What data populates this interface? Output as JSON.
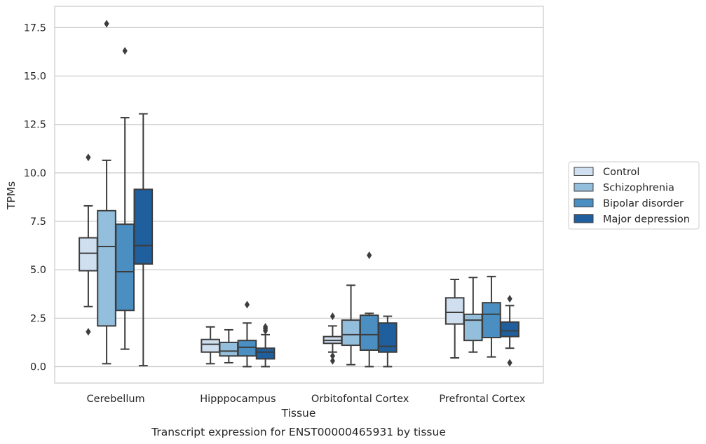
{
  "caption": "Transcript expression for ENST00000465931 by tissue",
  "colors": {
    "Control": "#cfdff0",
    "Schizophrenia": "#93bedc",
    "Bipolar disorder": "#4b8fc2",
    "Major depression": "#1f5f9d",
    "grid": "#cccccc",
    "line": "#3d3d3d"
  },
  "chart_data": {
    "type": "box",
    "title": "",
    "xlabel": "Tissue",
    "ylabel": "TPMs",
    "ylim": [
      -0.85,
      18.6
    ],
    "yticks": [
      "0.0",
      "2.5",
      "5.0",
      "7.5",
      "10.0",
      "12.5",
      "15.0",
      "17.5"
    ],
    "ytick_values": [
      0,
      2.5,
      5,
      7.5,
      10,
      12.5,
      15,
      17.5
    ],
    "grid": "horizontal",
    "legend_position": "right",
    "categories": [
      "Cerebellum",
      "Hipppocampus",
      "Orbitofontal Cortex",
      "Prefrontal Cortex"
    ],
    "series": [
      {
        "name": "Control",
        "boxes": [
          {
            "q1": 4.95,
            "median": 5.85,
            "q3": 6.65,
            "whislo": 3.1,
            "whishi": 8.3,
            "fliers": [
              10.8,
              1.8
            ]
          },
          {
            "q1": 0.75,
            "median": 1.15,
            "q3": 1.4,
            "whislo": 0.15,
            "whishi": 2.05,
            "fliers": []
          },
          {
            "q1": 1.2,
            "median": 1.35,
            "q3": 1.55,
            "whislo": 0.75,
            "whishi": 2.1,
            "fliers": [
              2.6,
              0.55,
              0.3
            ]
          },
          {
            "q1": 2.2,
            "median": 2.8,
            "q3": 3.55,
            "whislo": 0.45,
            "whishi": 4.5,
            "fliers": []
          }
        ]
      },
      {
        "name": "Schizophrenia",
        "boxes": [
          {
            "q1": 2.1,
            "median": 6.2,
            "q3": 8.05,
            "whislo": 0.15,
            "whishi": 10.65,
            "fliers": [
              17.7
            ]
          },
          {
            "q1": 0.55,
            "median": 0.8,
            "q3": 1.25,
            "whislo": 0.2,
            "whishi": 1.9,
            "fliers": []
          },
          {
            "q1": 1.1,
            "median": 1.65,
            "q3": 2.4,
            "whislo": 0.1,
            "whishi": 4.2,
            "fliers": []
          },
          {
            "q1": 1.35,
            "median": 2.4,
            "q3": 2.7,
            "whislo": 0.75,
            "whishi": 4.6,
            "fliers": []
          }
        ]
      },
      {
        "name": "Bipolar disorder",
        "boxes": [
          {
            "q1": 2.9,
            "median": 4.9,
            "q3": 7.35,
            "whislo": 0.9,
            "whishi": 12.85,
            "fliers": [
              16.3
            ]
          },
          {
            "q1": 0.55,
            "median": 1.0,
            "q3": 1.35,
            "whislo": 0.0,
            "whishi": 2.25,
            "fliers": [
              3.2
            ]
          },
          {
            "q1": 0.85,
            "median": 1.65,
            "q3": 2.65,
            "whislo": 0.0,
            "whishi": 2.75,
            "fliers": [
              5.75
            ]
          },
          {
            "q1": 1.5,
            "median": 2.7,
            "q3": 3.3,
            "whislo": 0.5,
            "whishi": 4.65,
            "fliers": []
          }
        ]
      },
      {
        "name": "Major depression",
        "boxes": [
          {
            "q1": 5.3,
            "median": 6.25,
            "q3": 9.15,
            "whislo": 0.05,
            "whishi": 13.05,
            "fliers": []
          },
          {
            "q1": 0.4,
            "median": 0.75,
            "q3": 0.95,
            "whislo": 0.0,
            "whishi": 1.65,
            "fliers": [
              1.85,
              1.95,
              2.05
            ]
          },
          {
            "q1": 0.75,
            "median": 1.05,
            "q3": 2.25,
            "whislo": 0.0,
            "whishi": 2.6,
            "fliers": []
          },
          {
            "q1": 1.55,
            "median": 1.85,
            "q3": 2.3,
            "whislo": 0.95,
            "whishi": 3.15,
            "fliers": [
              3.5,
              0.2
            ]
          }
        ]
      }
    ]
  }
}
